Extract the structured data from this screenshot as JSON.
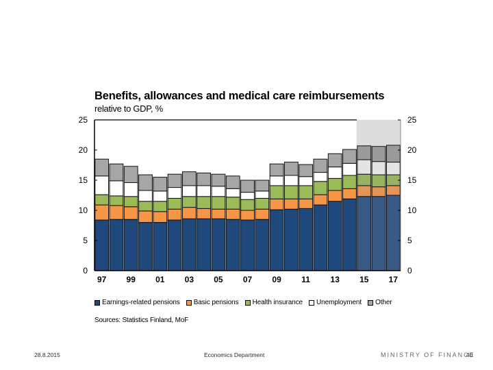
{
  "chart_data": {
    "type": "bar",
    "stacked": true,
    "title": "Benefits, allowances and medical care reimbursements",
    "subtitle": "relative to GDP, %",
    "xlabel": "",
    "ylabel": "",
    "ylim": [
      0,
      25
    ],
    "yticks": [
      0,
      5,
      10,
      15,
      20,
      25
    ],
    "y_axis_both_sides": true,
    "grid": false,
    "categories": [
      "97",
      "98",
      "99",
      "00",
      "01",
      "02",
      "03",
      "04",
      "05",
      "06",
      "07",
      "08",
      "09",
      "10",
      "11",
      "12",
      "13",
      "14",
      "15",
      "16",
      "17"
    ],
    "xtick_labels": [
      "97",
      "99",
      "01",
      "03",
      "05",
      "07",
      "09",
      "11",
      "13",
      "15",
      "17"
    ],
    "forecast_shaded_from": "15",
    "series": [
      {
        "name": "Earnings-related pensions",
        "color": "#1f497d",
        "forecast_color": "#3a5a86",
        "values": [
          8.4,
          8.5,
          8.5,
          8.0,
          8.0,
          8.4,
          8.6,
          8.6,
          8.6,
          8.5,
          8.4,
          8.5,
          10.1,
          10.2,
          10.3,
          10.9,
          11.5,
          11.9,
          12.3,
          12.3,
          12.5
        ]
      },
      {
        "name": "Basic pensions",
        "color": "#f79646",
        "forecast_color": "#e39456",
        "values": [
          2.5,
          2.3,
          2.1,
          1.9,
          1.8,
          1.8,
          1.9,
          1.7,
          1.6,
          1.7,
          1.6,
          1.7,
          1.8,
          1.7,
          1.6,
          1.7,
          1.8,
          1.7,
          1.8,
          1.6,
          1.6
        ]
      },
      {
        "name": "Health insurance",
        "color": "#9bbb59",
        "forecast_color": "#98b264",
        "values": [
          1.7,
          1.6,
          1.7,
          1.6,
          1.7,
          1.8,
          1.8,
          2.0,
          2.1,
          2.0,
          1.8,
          1.8,
          2.2,
          2.2,
          2.2,
          2.2,
          2.0,
          2.2,
          1.9,
          2.0,
          1.8
        ]
      },
      {
        "name": "Unemployment",
        "color": "#ffffff",
        "forecast_color": "#e4e4e4",
        "values": [
          3.1,
          2.5,
          2.3,
          1.8,
          1.7,
          1.8,
          1.8,
          1.8,
          1.7,
          1.4,
          1.2,
          1.2,
          1.6,
          1.7,
          1.5,
          1.5,
          1.9,
          2.0,
          2.4,
          2.2,
          2.1
        ]
      },
      {
        "name": "Other",
        "color": "#a6a6a6",
        "forecast_color": "#9a9a9a",
        "values": [
          2.8,
          2.8,
          2.7,
          2.6,
          2.3,
          2.2,
          2.3,
          2.1,
          2.0,
          2.1,
          2.0,
          1.8,
          2.0,
          2.2,
          2.0,
          2.2,
          2.2,
          2.3,
          2.3,
          2.5,
          2.8
        ]
      }
    ],
    "legend_position": "bottom"
  },
  "sources": "Sources: Statistics Finland, MoF",
  "footer": {
    "date": "28.8.2015",
    "department": "Economics Department",
    "organization": "MINISTRY OF FINANCE",
    "page": "40"
  }
}
